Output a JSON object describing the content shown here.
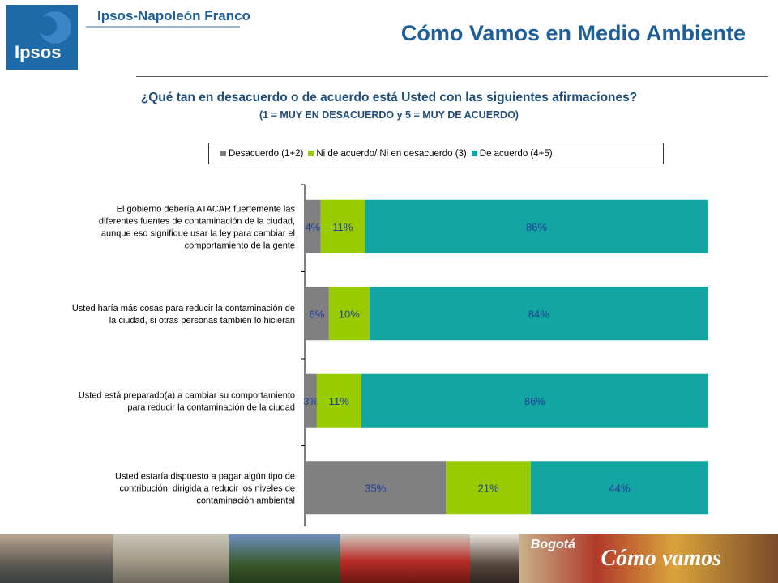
{
  "header": {
    "logo_text": "Ipsos",
    "brand": "Ipsos-Napoleón Franco",
    "title": "Cómo Vamos en Medio Ambiente"
  },
  "question": "¿Qué tan en desacuerdo o de acuerdo está Usted con las siguientes afirmaciones?",
  "scale_note": "(1 = MUY EN DESACUERDO y 5 = MUY DE ACUERDO)",
  "footer": {
    "brand_small": "Bogotá",
    "brand_large": "Cómo vamos"
  },
  "chart_data": {
    "type": "bar",
    "orientation": "horizontal",
    "stacked": true,
    "percent_stacked": true,
    "legend_position": "top",
    "grid": false,
    "categories": [
      "El gobierno debería ATACAR fuertemente las diferentes fuentes de contaminación de la ciudad, aunque eso signifique usar la ley para cambiar el comportamiento de la gente",
      "Usted haría más cosas para reducir la contaminación de la ciudad, si otras personas también lo hicieran",
      "Usted está preparado(a) a cambiar su comportamiento para reducir la contaminación de la ciudad",
      "Usted estaría dispuesto a pagar algún tipo de contribución, dirigida a reducir los niveles de contaminación ambiental"
    ],
    "category_lines": [
      [
        "El gobierno debería ATACAR fuertemente las",
        "diferentes fuentes de contaminación de la ciudad,",
        "aunque eso signifique usar la ley para cambiar el",
        "comportamiento de la gente"
      ],
      [
        "Usted haría más cosas para reducir la contaminación de",
        "la ciudad, si otras personas también lo hicieran"
      ],
      [
        "Usted está preparado(a) a cambiar su comportamiento",
        "para reducir la contaminación de la ciudad"
      ],
      [
        "Usted estaría dispuesto a pagar algún tipo de",
        "contribución, dirigida a reducir los niveles de",
        "contaminación ambiental"
      ]
    ],
    "series": [
      {
        "name": "Desacuerdo (1+2)",
        "color": "#808080",
        "values": [
          4,
          6,
          3,
          35
        ]
      },
      {
        "name": "Ni de acuerdo/ Ni en desacuerdo (3)",
        "color": "#99cc00",
        "values": [
          11,
          10,
          11,
          21
        ]
      },
      {
        "name": "De acuerdo (4+5)",
        "color": "#13a5a2",
        "values": [
          86,
          84,
          86,
          44
        ]
      }
    ],
    "value_suffix": "%"
  }
}
